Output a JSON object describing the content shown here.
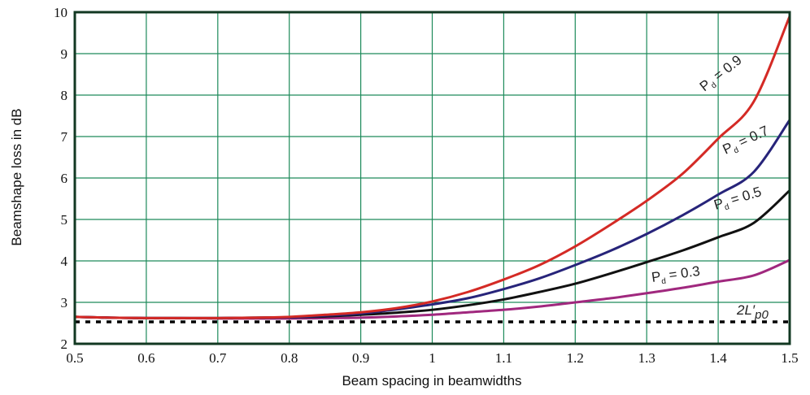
{
  "chart_data": {
    "type": "line",
    "xlabel": "Beam spacing in beamwidths",
    "ylabel": "Beamshape loss in dB",
    "xlim": [
      0.5,
      1.5
    ],
    "ylim": [
      2,
      10
    ],
    "xticks": [
      "0.5",
      "0.6",
      "0.7",
      "0.8",
      "0.9",
      "1",
      "1.1",
      "1.2",
      "1.3",
      "1.4",
      "1.5"
    ],
    "yticks": [
      "2",
      "3",
      "4",
      "5",
      "6",
      "7",
      "8",
      "9",
      "10"
    ],
    "grid": true,
    "x": [
      0.5,
      0.55,
      0.6,
      0.65,
      0.7,
      0.75,
      0.8,
      0.85,
      0.9,
      0.95,
      1.0,
      1.05,
      1.1,
      1.15,
      1.2,
      1.25,
      1.3,
      1.35,
      1.4,
      1.45,
      1.5
    ],
    "series": [
      {
        "name": "Pd = 0.9",
        "label_main": "P",
        "label_sub": "d",
        "label_rest": " = 0.9",
        "color": "#d42a25",
        "values": [
          2.65,
          2.63,
          2.62,
          2.62,
          2.62,
          2.63,
          2.65,
          2.7,
          2.76,
          2.86,
          3.02,
          3.25,
          3.55,
          3.9,
          4.35,
          4.88,
          5.45,
          6.1,
          6.95,
          7.85,
          9.9
        ]
      },
      {
        "name": "Pd = 0.7",
        "label_main": "P",
        "label_sub": "d",
        "label_rest": " = 0.7",
        "color": "#27247a",
        "values": [
          2.65,
          2.63,
          2.62,
          2.62,
          2.62,
          2.63,
          2.64,
          2.68,
          2.73,
          2.83,
          2.95,
          3.1,
          3.32,
          3.58,
          3.9,
          4.25,
          4.65,
          5.1,
          5.6,
          6.15,
          7.4
        ]
      },
      {
        "name": "Pd = 0.5",
        "label_main": "P",
        "label_sub": "d",
        "label_rest": " = 0.5",
        "color": "#111111",
        "values": [
          2.65,
          2.63,
          2.62,
          2.62,
          2.62,
          2.63,
          2.64,
          2.66,
          2.7,
          2.75,
          2.82,
          2.93,
          3.07,
          3.25,
          3.45,
          3.7,
          3.97,
          4.25,
          4.57,
          4.92,
          5.7
        ]
      },
      {
        "name": "Pd = 0.3",
        "label_main": "P",
        "label_sub": "d",
        "label_rest": " = 0.3",
        "color": "#a0287e",
        "values": [
          2.65,
          2.63,
          2.62,
          2.62,
          2.61,
          2.61,
          2.61,
          2.62,
          2.63,
          2.66,
          2.7,
          2.76,
          2.82,
          2.9,
          3.0,
          3.1,
          3.22,
          3.35,
          3.5,
          3.65,
          4.02
        ]
      }
    ],
    "reference": {
      "name": "2L'p0",
      "label_main": "2L",
      "label_prime": "′",
      "label_sub": "p0",
      "value": 2.53,
      "style": "dotted",
      "color": "#000000"
    }
  }
}
